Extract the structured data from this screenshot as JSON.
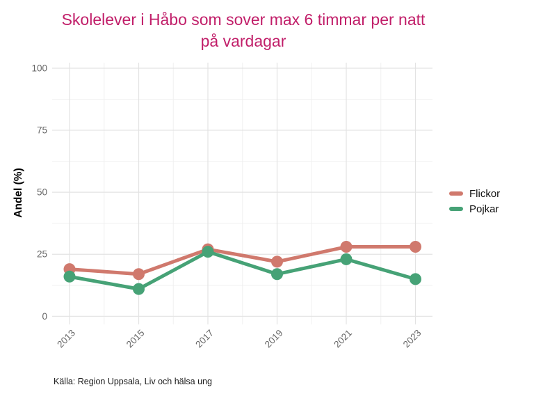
{
  "title": {
    "line1": "Skolelever i Håbo som sover max 6 timmar per natt",
    "line2": "på vardagar",
    "color": "#c11e69"
  },
  "caption": "Källa: Region Uppsala, Liv och hälsa ung",
  "legend": {
    "items": [
      {
        "label": "Flickor",
        "color": "#d0796d"
      },
      {
        "label": "Pojkar",
        "color": "#46a276"
      }
    ]
  },
  "chart_data": {
    "type": "line",
    "title": "Skolelever i Håbo som sover max 6 timmar per natt på vardagar",
    "xlabel": "",
    "ylabel": "Andel (%)",
    "x": [
      2013,
      2015,
      2017,
      2019,
      2021,
      2023
    ],
    "series": [
      {
        "name": "Flickor",
        "color": "#d0796d",
        "values": [
          19,
          17,
          27,
          22,
          28,
          28
        ]
      },
      {
        "name": "Pojkar",
        "color": "#46a276",
        "values": [
          16,
          11,
          26,
          17,
          23,
          15
        ]
      }
    ],
    "ylim": [
      0,
      100
    ],
    "y_ticks": [
      0,
      25,
      50,
      75,
      100
    ],
    "y_minor_ticks": [
      12.5,
      37.5,
      62.5,
      87.5
    ],
    "x_ticks": [
      2013,
      2015,
      2017,
      2019,
      2021,
      2023
    ],
    "x_minor_ticks": [
      2014,
      2016,
      2018,
      2020,
      2022
    ],
    "grid": true,
    "legend_position": "right",
    "colors": {
      "grid_major": "#e3e3e3",
      "grid_minor": "#f0f0f0",
      "tick_text": "#666666",
      "axis_title_text": "#000000"
    }
  }
}
